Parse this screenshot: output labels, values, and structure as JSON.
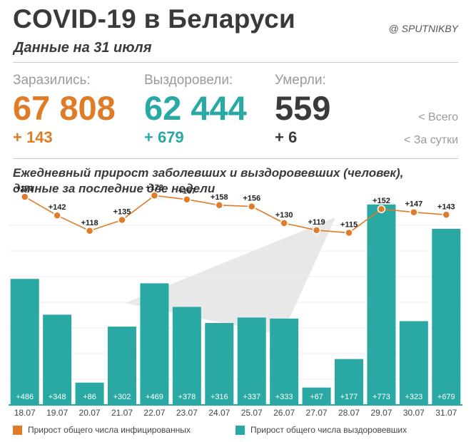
{
  "header": {
    "title": "COVID-19 в Беларуси",
    "subtitle": "Данные на 31 июля",
    "credit": "@ SPUTNIKBY"
  },
  "stats": [
    {
      "label": "Заразились:",
      "total": "67 808",
      "delta": "+ 143",
      "color": "#e07b27"
    },
    {
      "label": "Выздоровели:",
      "total": "62 444",
      "delta": "+ 679",
      "color": "#2aa9a4"
    },
    {
      "label": "Умерли:",
      "total": "559",
      "delta": "+ 6",
      "color": "#3a3a3a"
    }
  ],
  "stat_legend": {
    "total": "<  Всего",
    "daily": "<  За сутки"
  },
  "chart_data": {
    "type": "bar",
    "title": "Ежедневный прирост заболевших и выздоровевших (человек), данные за последние две недели",
    "categories": [
      "18.07",
      "19.07",
      "20.07",
      "21.07",
      "22.07",
      "23.07",
      "24.07",
      "25.07",
      "26.07",
      "27.07",
      "28.07",
      "29.07",
      "30.07",
      "31.07"
    ],
    "series": [
      {
        "name": "Прирост общего числа инфицированных",
        "type": "line",
        "color": "#e07b27",
        "values": [
          171,
          142,
          118,
          135,
          173,
          167,
          158,
          156,
          130,
          119,
          115,
          152,
          147,
          143
        ],
        "labels": [
          "+171",
          "+142",
          "+118",
          "+135",
          "+173",
          "+167",
          "+158",
          "+156",
          "+130",
          "+119",
          "+115",
          "+152",
          "+147",
          "+143"
        ]
      },
      {
        "name": "Прирост общего числа выздоровевших",
        "type": "bar",
        "color": "#2aa9a4",
        "values": [
          486,
          348,
          86,
          302,
          469,
          378,
          316,
          337,
          333,
          67,
          177,
          773,
          323,
          679
        ],
        "labels": [
          "+486",
          "+348",
          "+86",
          "+302",
          "+469",
          "+378",
          "+316",
          "+337",
          "+333",
          "+67",
          "+177",
          "+773",
          "+323",
          "+679"
        ]
      }
    ],
    "ylim": [
      0,
      800
    ],
    "grid": true,
    "legend": "bottom"
  }
}
